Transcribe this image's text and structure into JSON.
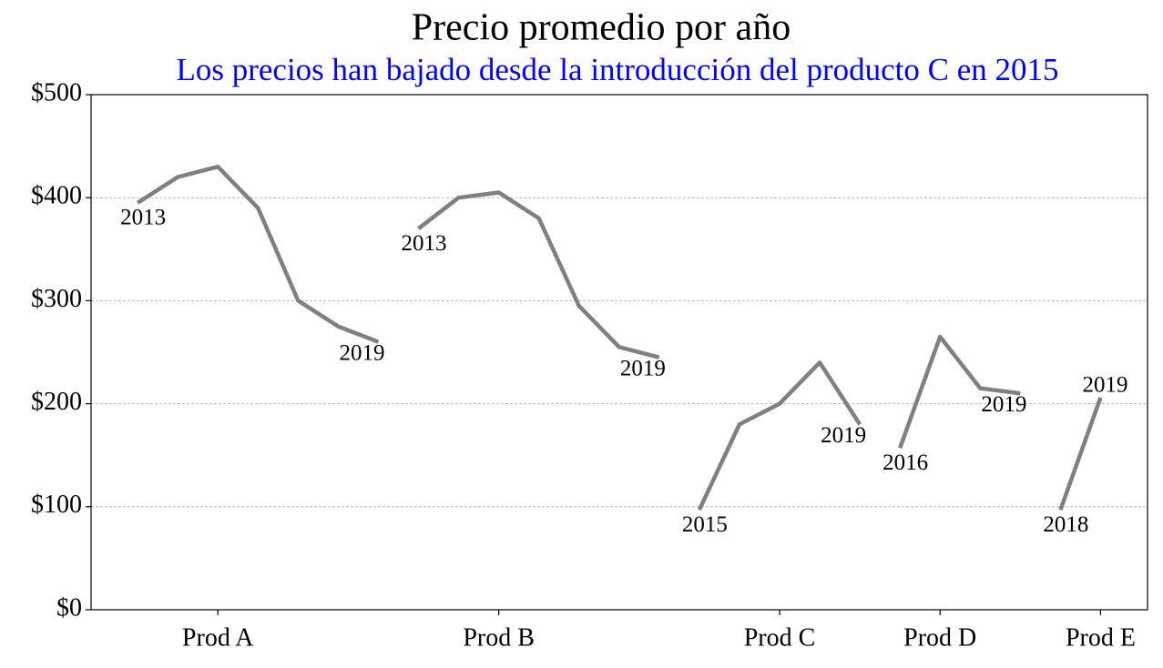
{
  "chart_data": {
    "type": "line",
    "title": "Precio promedio por año",
    "subtitle": "Los precios han bajado desde la introducción del producto C en 2015",
    "series": [
      {
        "color": "#808080",
        "x": [
          0,
          1,
          2,
          3,
          4,
          5,
          6
        ],
        "values": [
          395,
          420,
          430,
          390,
          300,
          275,
          260
        ],
        "start_label": "2013",
        "end_label": "2019"
      },
      {
        "color": "#808080",
        "x": [
          7,
          8,
          9,
          10,
          11,
          12,
          13
        ],
        "values": [
          370,
          400,
          405,
          380,
          295,
          255,
          245
        ],
        "start_label": "2013",
        "end_label": "2019"
      },
      {
        "color": "#808080",
        "x": [
          14,
          15,
          16,
          17,
          18
        ],
        "values": [
          97,
          180,
          200,
          240,
          180
        ],
        "start_label": "2015",
        "end_label": "2019"
      },
      {
        "color": "#808080",
        "x": [
          19,
          20,
          21,
          22
        ],
        "values": [
          157,
          265,
          215,
          210
        ],
        "start_label": "2016",
        "end_label": "2019"
      },
      {
        "color": "#808080",
        "x": [
          23,
          24
        ],
        "values": [
          97,
          206
        ],
        "start_label": "2018",
        "end_label": "2019"
      }
    ],
    "xlim": [
      -1.16,
      25.17
    ],
    "xticks": [
      {
        "value": 2,
        "label": "Prod A"
      },
      {
        "value": 9,
        "label": "Prod B"
      },
      {
        "value": 16,
        "label": "Prod C"
      },
      {
        "value": 20,
        "label": "Prod D"
      },
      {
        "value": 24,
        "label": "Prod E"
      }
    ],
    "ylim": [
      0,
      500
    ],
    "yticks": [
      {
        "value": 0,
        "label": "$0"
      },
      {
        "value": 100,
        "label": "$100"
      },
      {
        "value": 200,
        "label": "$200"
      },
      {
        "value": 300,
        "label": "$300"
      },
      {
        "value": 400,
        "label": "$400"
      },
      {
        "value": 500,
        "label": "$500"
      }
    ],
    "grid": true
  }
}
